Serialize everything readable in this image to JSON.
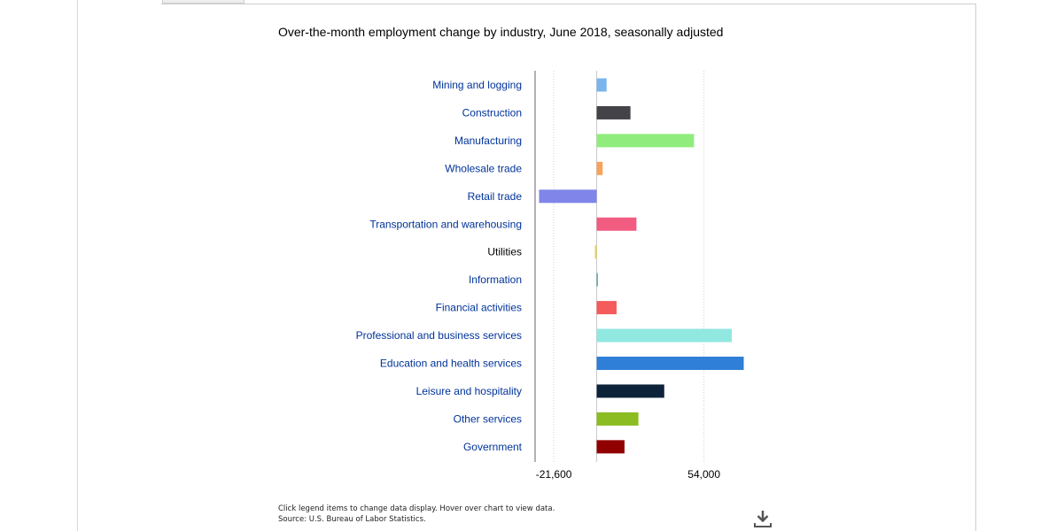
{
  "chart_data": {
    "type": "bar",
    "orientation": "horizontal",
    "title": "Over-the-month employment change by industry, June 2018, seasonally adjusted",
    "categories": [
      "Mining and logging",
      "Construction",
      "Manufacturing",
      "Wholesale trade",
      "Retail trade",
      "Transportation and warehousing",
      "Utilities",
      "Information",
      "Financial activities",
      "Professional and business services",
      "Education and health services",
      "Leisure and hospitality",
      "Other services",
      "Government"
    ],
    "values": [
      5000,
      17000,
      49000,
      3000,
      -29000,
      20000,
      -900,
      500,
      10000,
      68000,
      74000,
      34000,
      21000,
      14000
    ],
    "colors": [
      "#7cb5ec",
      "#434348",
      "#90ed7d",
      "#f7a35c",
      "#8085e9",
      "#f15c80",
      "#e4d354",
      "#2b908f",
      "#f45b5b",
      "#91e8e1",
      "#2f7ed8",
      "#0d233a",
      "#8bbc21",
      "#910000"
    ],
    "category_label_colors": [
      "#003399",
      "#003399",
      "#003399",
      "#003399",
      "#003399",
      "#003399",
      "#000000",
      "#003399",
      "#003399",
      "#003399",
      "#003399",
      "#003399",
      "#003399",
      "#003399"
    ],
    "xticks": [
      -21600,
      54000
    ],
    "xtick_labels": [
      "-21,600",
      "54,000"
    ],
    "xlim": [
      -31000,
      76000
    ],
    "xlabel": "",
    "ylabel": "",
    "grid": false,
    "legend": "none"
  },
  "footer": {
    "note_line1": "Click legend items to change data display. Hover over chart to view data.",
    "note_line2": "Source: U.S. Bureau of Labor Statistics."
  },
  "icons": {
    "download": "download-icon"
  }
}
